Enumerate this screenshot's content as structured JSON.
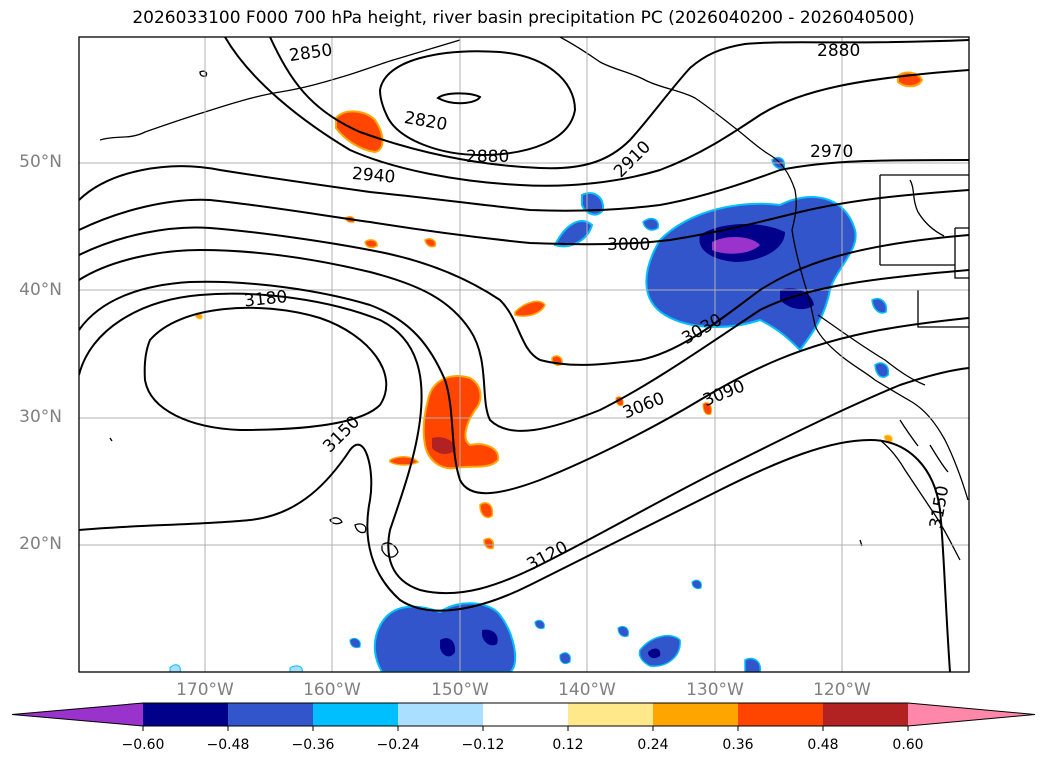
{
  "title": "2026033100 F000 700 hPa height, river basin precipitation PC (2026040200 - 2026040500)",
  "latitude_labels": [
    "50°N",
    "40°N",
    "30°N",
    "20°N"
  ],
  "longitude_labels": [
    "170°W",
    "160°W",
    "150°W",
    "140°W",
    "130°W",
    "120°W"
  ],
  "contour_labels": [
    "2850",
    "2820",
    "2880",
    "2880",
    "2910",
    "2940",
    "2970",
    "3000",
    "3030",
    "3060",
    "3090",
    "3120",
    "3150",
    "3150",
    "3180"
  ],
  "colorbar": {
    "tick_labels": [
      "−0.60",
      "−0.48",
      "−0.36",
      "−0.24",
      "−0.12",
      "0.12",
      "0.24",
      "0.36",
      "0.48",
      "0.60"
    ],
    "colors": [
      "#9933cc",
      "#00008b",
      "#3355cc",
      "#00bfff",
      "#aadfff",
      "#ffffff",
      "#ffe88a",
      "#ffa500",
      "#ff4500",
      "#b22222",
      "#ff88aa"
    ]
  }
}
